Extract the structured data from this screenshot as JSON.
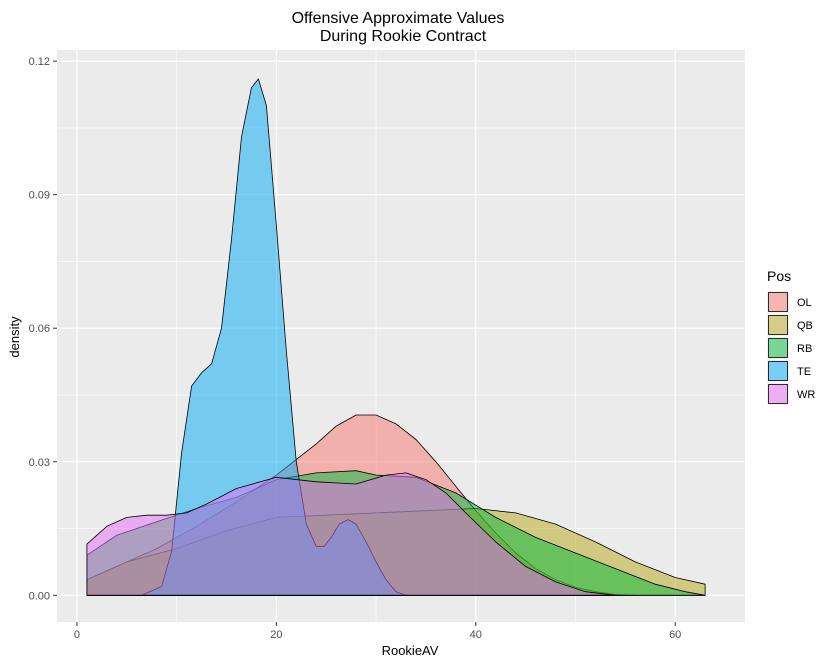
{
  "chart_data": {
    "type": "area",
    "title_lines": [
      "Offensive Approximate Values",
      "During Rookie Contract"
    ],
    "xlabel": "RookieAV",
    "ylabel": "density",
    "xlim": [
      -2,
      67
    ],
    "ylim": [
      -0.006,
      0.1225
    ],
    "x_ticks": [
      0,
      20,
      40,
      60
    ],
    "y_ticks": [
      0.0,
      0.03,
      0.06,
      0.09,
      0.12
    ],
    "y_tick_labels": [
      "0.00",
      "0.03",
      "0.06",
      "0.09",
      "0.12"
    ],
    "grid": true,
    "panel_background": "#ebebeb",
    "legend": {
      "title": "Pos",
      "position": "right"
    },
    "series": [
      {
        "name": "OL",
        "color": "#F8766D",
        "x": [
          1,
          4,
          8,
          12,
          16,
          20,
          24,
          26,
          28,
          30,
          32,
          34,
          36,
          38,
          40,
          42,
          44,
          46,
          48,
          50,
          52,
          54,
          56
        ],
        "y": [
          0.0035,
          0.0065,
          0.0105,
          0.0155,
          0.021,
          0.027,
          0.034,
          0.038,
          0.0405,
          0.0405,
          0.0385,
          0.035,
          0.03,
          0.0245,
          0.019,
          0.014,
          0.0095,
          0.006,
          0.0035,
          0.0018,
          0.0008,
          0.0002,
          0.0
        ]
      },
      {
        "name": "QB",
        "color": "#B7A81A",
        "x": [
          1,
          5,
          10,
          15,
          20,
          25,
          30,
          35,
          40,
          44,
          48,
          52,
          56,
          60,
          63
        ],
        "y": [
          0.0035,
          0.0075,
          0.0105,
          0.0145,
          0.0175,
          0.018,
          0.0185,
          0.019,
          0.0195,
          0.0185,
          0.016,
          0.012,
          0.0075,
          0.004,
          0.0025
        ]
      },
      {
        "name": "RB",
        "color": "#00BA38",
        "x": [
          1,
          4,
          8,
          12,
          16,
          20,
          24,
          28,
          30,
          34,
          38,
          42,
          46,
          50,
          54,
          58,
          61,
          63
        ],
        "y": [
          0.009,
          0.0135,
          0.0165,
          0.0195,
          0.022,
          0.026,
          0.0275,
          0.028,
          0.027,
          0.0265,
          0.023,
          0.0175,
          0.013,
          0.0095,
          0.006,
          0.0025,
          0.0008,
          0.0
        ]
      },
      {
        "name": "TE",
        "color": "#00A9F4",
        "x": [
          6.5,
          8.5,
          9.5,
          10.5,
          11.5,
          12.5,
          13.5,
          14.5,
          15.5,
          16.5,
          17.5,
          18.2,
          19,
          20,
          21,
          22,
          23,
          24,
          24.8,
          25.5,
          26.3,
          27.2,
          28,
          29,
          30,
          31,
          32,
          33
        ],
        "y": [
          0.0,
          0.002,
          0.01,
          0.032,
          0.047,
          0.05,
          0.052,
          0.06,
          0.08,
          0.103,
          0.114,
          0.116,
          0.11,
          0.083,
          0.055,
          0.03,
          0.016,
          0.011,
          0.011,
          0.013,
          0.016,
          0.017,
          0.016,
          0.012,
          0.0075,
          0.0035,
          0.0008,
          0.0
        ]
      },
      {
        "name": "WR",
        "color": "#E76BF3",
        "x": [
          1,
          3,
          5,
          7,
          9,
          11,
          13,
          16,
          20,
          24,
          28,
          31,
          33,
          35,
          37,
          39,
          42,
          45,
          48,
          51,
          54
        ],
        "y": [
          0.0115,
          0.0155,
          0.0175,
          0.018,
          0.018,
          0.0185,
          0.0205,
          0.024,
          0.0265,
          0.0255,
          0.025,
          0.027,
          0.0275,
          0.026,
          0.023,
          0.0185,
          0.012,
          0.0065,
          0.003,
          0.0008,
          0.0
        ]
      }
    ]
  }
}
